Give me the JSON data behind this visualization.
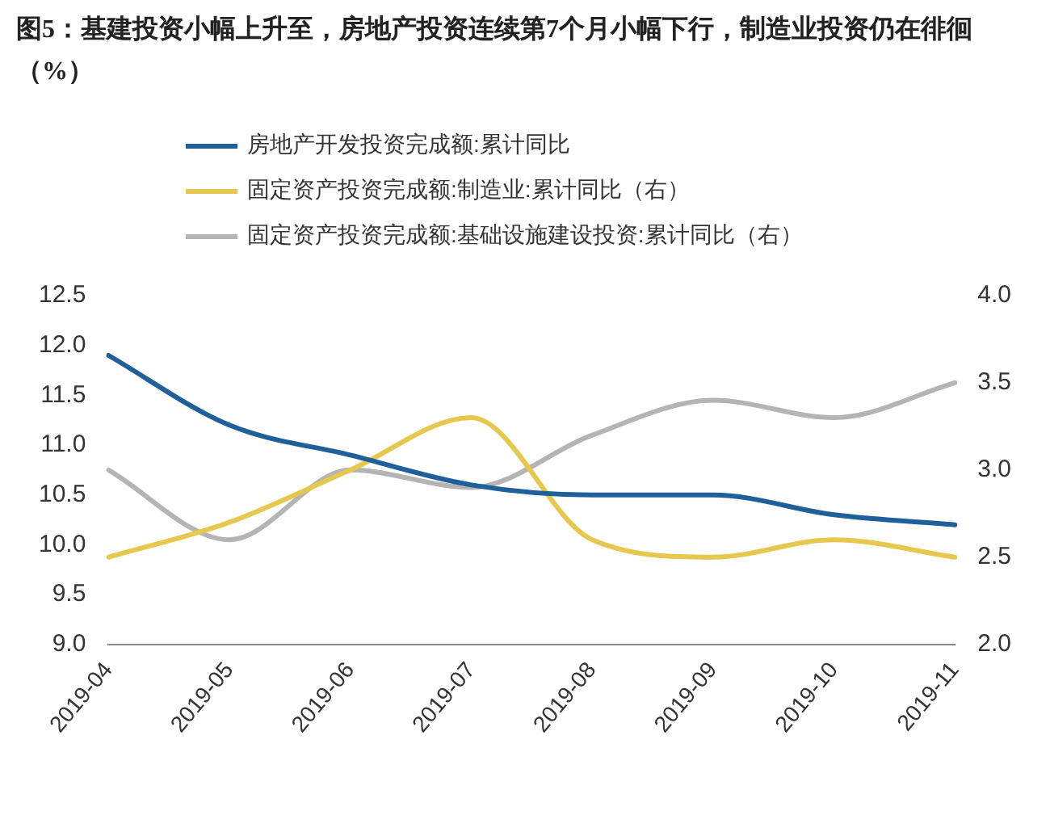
{
  "chart_data": {
    "type": "line",
    "title": "图5：基建投资小幅上升至，房地产投资连续第7个月小幅下行，制造业投资仍在徘徊（%）",
    "categories": [
      "2019-04",
      "2019-05",
      "2019-06",
      "2019-07",
      "2019-08",
      "2019-09",
      "2019-10",
      "2019-11"
    ],
    "series": [
      {
        "name": "房地产开发投资完成额:累计同比",
        "color": "#1f5f9a",
        "values": [
          11.9,
          11.2,
          10.9,
          10.6,
          10.5,
          10.5,
          10.3,
          10.2
        ]
      },
      {
        "name": "固定资产投资完成额:制造业:累计同比（右）",
        "color": "#e6c84e",
        "axis": "y2",
        "values": [
          2.5,
          2.7,
          3.0,
          3.3,
          2.6,
          2.5,
          2.6,
          2.5
        ]
      },
      {
        "name": "固定资产投资完成额:基础设施建设投资:累计同比（右）",
        "color": "#b4b4b4",
        "axis": "y2",
        "values": [
          3.0,
          2.6,
          3.0,
          2.9,
          3.2,
          3.4,
          3.3,
          3.5
        ]
      }
    ],
    "ylim": [
      9,
      12.5
    ],
    "yticks": [
      {
        "value": 9,
        "label": "9.0"
      },
      {
        "value": 9.5,
        "label": "9.5"
      },
      {
        "value": 10,
        "label": "10.0"
      },
      {
        "value": 10.5,
        "label": "10.5"
      },
      {
        "value": 11,
        "label": "11.0"
      },
      {
        "value": 11.5,
        "label": "11.5"
      },
      {
        "value": 12,
        "label": "12.0"
      },
      {
        "value": 12.5,
        "label": "12.5"
      }
    ],
    "y2lim": [
      2,
      4
    ],
    "y2ticks": [
      {
        "value": 2,
        "label": "2.0"
      },
      {
        "value": 2.5,
        "label": "2.5"
      },
      {
        "value": 3,
        "label": "3.0"
      },
      {
        "value": 3.5,
        "label": "3.5"
      },
      {
        "value": 4,
        "label": "4.0"
      }
    ],
    "grid": false,
    "legend": "top",
    "marker": "none",
    "line_style": "solid"
  }
}
